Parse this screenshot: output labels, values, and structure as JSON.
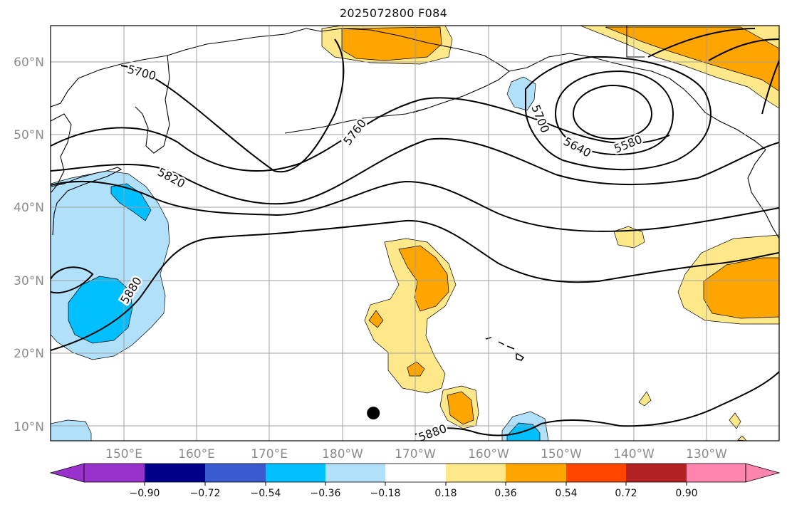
{
  "title": "2025072800 F084",
  "map": {
    "lon_range": [
      140,
      240
    ],
    "lat_range": [
      8,
      65
    ],
    "lat_ticks": [
      {
        "value": 10,
        "label": "10°N"
      },
      {
        "value": 20,
        "label": "20°N"
      },
      {
        "value": 30,
        "label": "30°N"
      },
      {
        "value": 40,
        "label": "40°N"
      },
      {
        "value": 50,
        "label": "50°N"
      },
      {
        "value": 60,
        "label": "60°N"
      }
    ],
    "lon_ticks": [
      {
        "value": 150,
        "label": "150°E"
      },
      {
        "value": 160,
        "label": "160°E"
      },
      {
        "value": 170,
        "label": "170°E"
      },
      {
        "value": 180,
        "label": "180°W"
      },
      {
        "value": 190,
        "label": "170°W"
      },
      {
        "value": 200,
        "label": "160°W"
      },
      {
        "value": 210,
        "label": "150°W"
      },
      {
        "value": 220,
        "label": "140°W"
      },
      {
        "value": 230,
        "label": "130°W"
      }
    ],
    "contour_labels": [
      "5700",
      "5760",
      "5820",
      "5880",
      "5700",
      "5640",
      "5580",
      "5880"
    ],
    "marker": {
      "lon": 184.3,
      "lat": 11.8
    }
  },
  "colorbar": {
    "ticks": [
      "−0.90",
      "−0.72",
      "−0.54",
      "−0.36",
      "−0.18",
      "0.18",
      "0.36",
      "0.54",
      "0.72",
      "0.90"
    ],
    "colors": [
      "#9932CC",
      "#00008B",
      "#3A5BCF",
      "#00BFFF",
      "#B0E0FA",
      "#FFFFFF",
      "#FFE88A",
      "#FFA500",
      "#FF4500",
      "#B22222",
      "#FF85AE"
    ]
  },
  "colors": {
    "light_yellow": "#FFE88A",
    "orange": "#FFA500",
    "light_blue": "#B0E0FA",
    "deep_sky_blue": "#00BFFF",
    "grid": "#A0A0A0",
    "contour": "#000000"
  }
}
